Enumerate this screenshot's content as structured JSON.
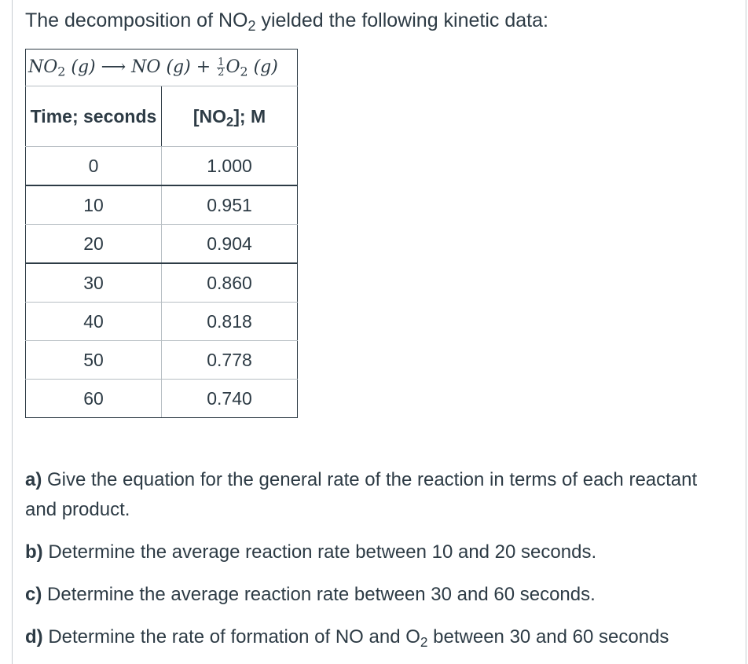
{
  "intro": {
    "prefix": "The decomposition of NO",
    "sub": "2",
    "suffix": " yielded the following kinetic data:"
  },
  "equation": {
    "reactant": "NO",
    "reactant_sub": "2",
    "state": "(g)",
    "arrow": "⟶",
    "product1": "NO",
    "plus": "+",
    "frac_num": "1",
    "frac_den": "2",
    "product2": "O",
    "product2_sub": "2"
  },
  "table": {
    "col_time": "Time; seconds",
    "col_conc_prefix": "[NO",
    "col_conc_sub": "2",
    "col_conc_suffix": "]; M",
    "rows": [
      {
        "time": "0",
        "conc": "1.000"
      },
      {
        "time": "10",
        "conc": "0.951"
      },
      {
        "time": "20",
        "conc": "0.904"
      },
      {
        "time": "30",
        "conc": "0.860"
      },
      {
        "time": "40",
        "conc": "0.818"
      },
      {
        "time": "50",
        "conc": "0.778"
      },
      {
        "time": "60",
        "conc": "0.740"
      }
    ]
  },
  "questions": {
    "a_label": "a)",
    "a_text": " Give the equation for the general rate of the reaction in terms of each reactant and product.",
    "b_label": "b)",
    "b_text": " Determine the average reaction rate between 10 and 20 seconds.",
    "c_label": "c)",
    "c_text": " Determine the average reaction rate between 30 and 60 seconds.",
    "d_label": "d)",
    "d_text_pre": " Determine the rate of formation of NO and O",
    "d_sub": "2",
    "d_text_post": " between 30 and 60 seconds"
  }
}
